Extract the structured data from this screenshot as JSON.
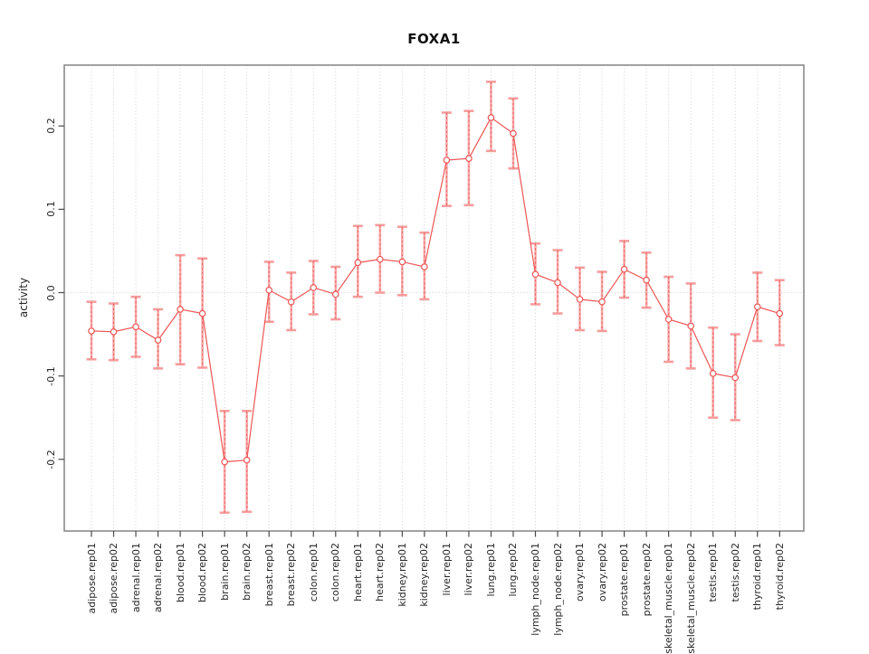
{
  "chart_data": {
    "type": "line",
    "subtype": "points-with-error-bars",
    "title": "FOXA1",
    "xlabel": "",
    "ylabel": "activity",
    "categories": [
      "adipose.rep01",
      "adipose.rep02",
      "adrenal.rep01",
      "adrenal.rep02",
      "blood.rep01",
      "blood.rep02",
      "brain.rep01",
      "brain.rep02",
      "breast.rep01",
      "breast.rep02",
      "colon.rep01",
      "colon.rep02",
      "heart.rep01",
      "heart.rep02",
      "kidney.rep01",
      "kidney.rep02",
      "liver.rep01",
      "liver.rep02",
      "lung.rep01",
      "lung.rep02",
      "lymph_node.rep01",
      "lymph_node.rep02",
      "ovary.rep01",
      "ovary.rep02",
      "prostate.rep01",
      "prostate.rep02",
      "skeletal_muscle.rep01",
      "skeletal_muscle.rep02",
      "testis.rep01",
      "testis.rep02",
      "thyroid.rep01",
      "thyroid.rep02"
    ],
    "values": [
      -0.046,
      -0.047,
      -0.041,
      -0.057,
      -0.02,
      -0.025,
      -0.203,
      -0.201,
      0.003,
      -0.011,
      0.006,
      -0.002,
      0.036,
      0.04,
      0.037,
      0.031,
      0.159,
      0.161,
      0.21,
      0.191,
      0.022,
      0.012,
      -0.008,
      -0.011,
      0.028,
      0.015,
      -0.032,
      -0.04,
      -0.097,
      -0.102,
      -0.017,
      -0.025
    ],
    "error_low": [
      -0.08,
      -0.081,
      -0.077,
      -0.091,
      -0.086,
      -0.09,
      -0.264,
      -0.263,
      -0.035,
      -0.045,
      -0.026,
      -0.032,
      -0.005,
      0.0,
      -0.003,
      -0.008,
      0.104,
      0.105,
      0.17,
      0.149,
      -0.014,
      -0.025,
      -0.045,
      -0.046,
      -0.006,
      -0.018,
      -0.083,
      -0.091,
      -0.15,
      -0.153,
      -0.058,
      -0.063
    ],
    "error_high": [
      -0.011,
      -0.013,
      -0.005,
      -0.02,
      0.045,
      0.041,
      -0.142,
      -0.142,
      0.037,
      0.024,
      0.038,
      0.031,
      0.08,
      0.081,
      0.079,
      0.072,
      0.216,
      0.218,
      0.253,
      0.233,
      0.059,
      0.051,
      0.03,
      0.025,
      0.062,
      0.048,
      0.019,
      0.011,
      -0.042,
      -0.05,
      0.024,
      0.015
    ],
    "yticks": [
      -0.2,
      -0.1,
      0.0,
      0.1,
      0.2
    ],
    "ytick_labels": [
      "-0.2",
      "-0.1",
      "0.0",
      "0.1",
      "0.2"
    ],
    "ylim": [
      -0.286,
      0.273
    ],
    "legend": "none",
    "grid": "vertical dotted line per category; horizontal dotted line at y=0",
    "marker": "open-circle",
    "colors": {
      "series": "#ee5555",
      "error_bar": "#f8aaaa",
      "error_cap": "#f59d9d",
      "error_dash": "#ee5555",
      "grid": "#d0d0d0",
      "box": "#8a8a8a",
      "tick": "#4a4a4a",
      "text": "#262626",
      "background": "#ffffff"
    }
  }
}
